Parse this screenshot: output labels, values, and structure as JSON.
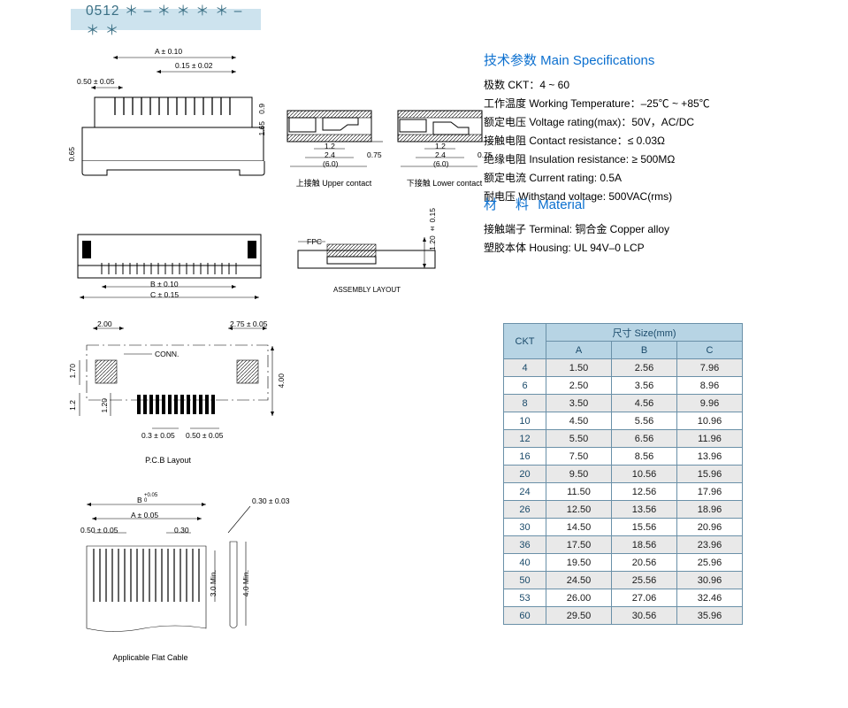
{
  "header": "0512 ＊ – ＊ ＊ ＊ ＊ – ＊ ＊",
  "d_top": {
    "a": "A ± 0.10",
    "p": "0.15 ± 0.02",
    "pitch": "0.50 ± 0.05",
    "h1": "0.9",
    "h2": "1.65",
    "hleft": "0.65",
    "cap_upper": "上接触 Upper contact",
    "cap_lower": "下接触 Lower contact",
    "u12": "1.2",
    "u24": "2.4",
    "u60": "(6.0)",
    "u075": "0.75"
  },
  "d_mid": {
    "b": "B ± 0.10",
    "c": "C ± 0.15",
    "fpc": "FPC",
    "vh": "1.20 ± 0.15",
    "cap": "ASSEMBLY LAYOUT"
  },
  "d_pcb": {
    "d1": "2.00",
    "d2": "2.75 ± 0.05",
    "h1": "1.70",
    "h2": "1.2",
    "h3": "1.20",
    "conn": "CONN.",
    "p": "0.3 ± 0.05",
    "p2": "0.50 ± 0.05",
    "vr": "4.00",
    "cap": "P.C.B Layout"
  },
  "d_cable": {
    "b": "B",
    "btol": "+0.05\n0",
    "a": "A ± 0.05",
    "pitch": "0.50 ± 0.05",
    "w": "0.30",
    "h1": "3.0 Min.",
    "h2": "4.0 Min.",
    "t": "0.30 ± 0.03",
    "cap": "Applicable Flat Cable"
  },
  "specs": {
    "title": "技术参数 Main Specifications",
    "lines": [
      "极数 CKT：4 ~ 60",
      "工作温度 Working Temperature：–25℃ ~ +85℃",
      "额定电压 Voltage rating(max)：50V，AC/DC",
      "接触电阻 Contact resistance：≤ 0.03Ω",
      "绝缘电阻 Insulation resistance: ≥ 500MΩ",
      "额定电流 Current rating: 0.5A",
      "耐电压 Withstand voltage: 500VAC(rms)"
    ]
  },
  "material": {
    "title_cn": "材　料",
    "title_en": "Material",
    "lines": [
      "接触端子 Terminal: 铜合金 Copper alloy",
      "塑胶本体 Housing: UL 94V–0 LCP"
    ]
  },
  "sizetable": {
    "ckt": "CKT",
    "size": "尺寸 Size(mm)",
    "cols": [
      "A",
      "B",
      "C"
    ],
    "rows": [
      [
        "4",
        "1.50",
        "2.56",
        "7.96"
      ],
      [
        "6",
        "2.50",
        "3.56",
        "8.96"
      ],
      [
        "8",
        "3.50",
        "4.56",
        "9.96"
      ],
      [
        "10",
        "4.50",
        "5.56",
        "10.96"
      ],
      [
        "12",
        "5.50",
        "6.56",
        "11.96"
      ],
      [
        "16",
        "7.50",
        "8.56",
        "13.96"
      ],
      [
        "20",
        "9.50",
        "10.56",
        "15.96"
      ],
      [
        "24",
        "11.50",
        "12.56",
        "17.96"
      ],
      [
        "26",
        "12.50",
        "13.56",
        "18.96"
      ],
      [
        "30",
        "14.50",
        "15.56",
        "20.96"
      ],
      [
        "36",
        "17.50",
        "18.56",
        "23.96"
      ],
      [
        "40",
        "19.50",
        "20.56",
        "25.96"
      ],
      [
        "50",
        "24.50",
        "25.56",
        "30.96"
      ],
      [
        "53",
        "26.00",
        "27.06",
        "32.46"
      ],
      [
        "60",
        "29.50",
        "30.56",
        "35.96"
      ]
    ]
  },
  "colors": {
    "header_bg": "#cde3ee",
    "header_text": "#3a6f84",
    "blue_heading": "#0b6fcf",
    "table_border": "#6a90a8",
    "table_header_bg": "#b7d4e4",
    "table_alt_row": "#e9e9e9",
    "table_text_blue": "#1a4a6a"
  }
}
